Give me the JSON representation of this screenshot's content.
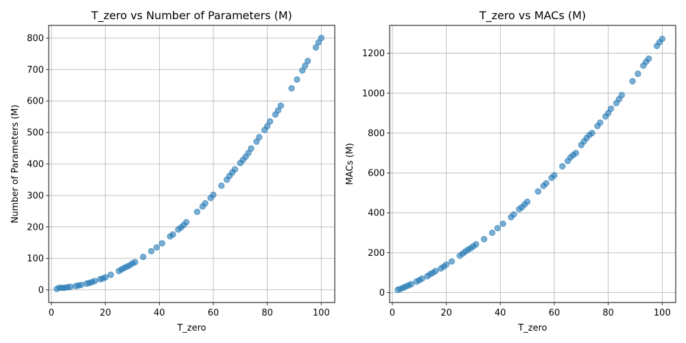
{
  "chart_data": [
    {
      "type": "scatter",
      "title": "T_zero vs Number of Parameters (M)",
      "xlabel": "T_zero",
      "ylabel": "Number of Parameters (M)",
      "xlim": [
        -1,
        105
      ],
      "ylim": [
        -40,
        840
      ],
      "xticks": [
        0,
        20,
        40,
        60,
        80,
        100
      ],
      "yticks": [
        0,
        100,
        200,
        300,
        400,
        500,
        600,
        700,
        800
      ],
      "grid": true,
      "color": "#1f77b4",
      "series": [
        {
          "x": [
            2,
            3,
            4,
            5,
            6,
            7,
            9,
            10,
            11,
            13,
            14,
            15,
            16,
            18,
            19,
            20,
            22,
            25,
            26,
            27,
            28,
            29,
            30,
            31,
            34,
            37,
            39,
            41,
            44,
            45,
            47,
            48,
            49,
            50,
            54,
            56,
            57,
            59,
            60,
            63,
            65,
            66,
            67,
            68,
            70,
            71,
            72,
            73,
            74,
            76,
            77,
            79,
            80,
            81,
            83,
            84,
            85,
            89,
            91,
            93,
            94,
            95,
            98,
            99,
            100
          ],
          "y": [
            3.2,
            7.2,
            6.4,
            7,
            8.5,
            9.8,
            12,
            14,
            16,
            20,
            22,
            25,
            28,
            34,
            36,
            40,
            48,
            60,
            65,
            70,
            74,
            78,
            84,
            88,
            105,
            123,
            135,
            148,
            170,
            176,
            192,
            198,
            206,
            215,
            248,
            265,
            275,
            292,
            302,
            331,
            350,
            362,
            373,
            383,
            403,
            413,
            423,
            435,
            449,
            471,
            485,
            508,
            520,
            535,
            557,
            570,
            585,
            640,
            668,
            697,
            712,
            727,
            770,
            786,
            800
          ]
        }
      ]
    },
    {
      "type": "scatter",
      "title": "T_zero vs MACs (M)",
      "xlabel": "T_zero",
      "ylabel": "MACs (M)",
      "xlim": [
        -1,
        105
      ],
      "ylim": [
        -50,
        1340
      ],
      "xticks": [
        0,
        20,
        40,
        60,
        80,
        100
      ],
      "yticks": [
        0,
        200,
        400,
        600,
        800,
        1000,
        1200
      ],
      "grid": true,
      "color": "#1f77b4",
      "series": [
        {
          "x": [
            2,
            3,
            4,
            5,
            6,
            7,
            9,
            10,
            11,
            13,
            14,
            15,
            16,
            18,
            19,
            20,
            22,
            25,
            26,
            27,
            28,
            29,
            30,
            31,
            34,
            37,
            39,
            41,
            44,
            45,
            47,
            48,
            49,
            50,
            54,
            56,
            57,
            59,
            60,
            63,
            65,
            66,
            67,
            68,
            70,
            71,
            72,
            73,
            74,
            76,
            77,
            79,
            80,
            81,
            83,
            84,
            85,
            89,
            91,
            93,
            94,
            95,
            98,
            99,
            100
          ],
          "y": [
            14,
            18,
            24,
            30,
            36,
            42,
            55,
            62,
            70,
            82,
            92,
            99,
            108,
            121,
            130,
            140,
            156,
            185,
            195,
            205,
            215,
            222,
            232,
            242,
            268,
            300,
            323,
            345,
            378,
            392,
            418,
            428,
            442,
            455,
            507,
            535,
            548,
            575,
            588,
            633,
            660,
            678,
            690,
            700,
            740,
            758,
            775,
            790,
            800,
            835,
            852,
            883,
            900,
            922,
            950,
            970,
            990,
            1060,
            1097,
            1138,
            1157,
            1173,
            1237,
            1255,
            1272
          ]
        }
      ]
    }
  ]
}
